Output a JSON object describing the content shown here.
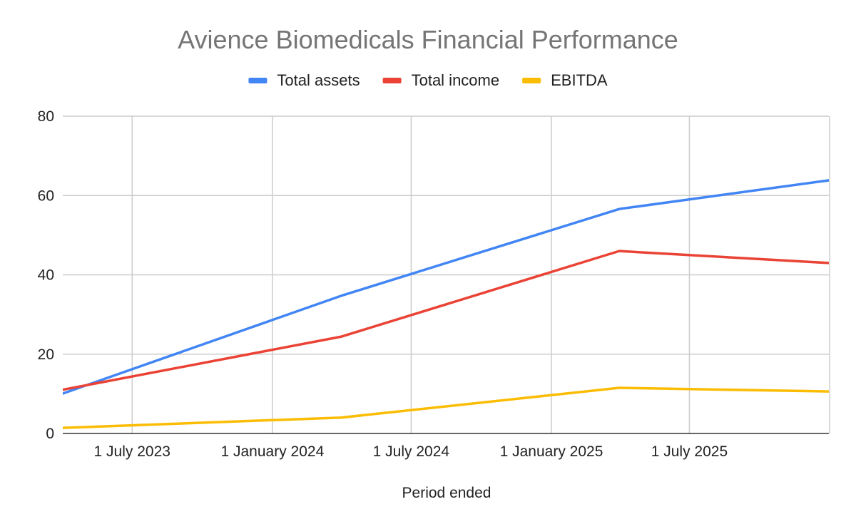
{
  "chart_data": {
    "type": "line",
    "title": "Avience Biomedicals Financial Performance",
    "xlabel": "Period ended",
    "ylabel": "",
    "ylim": [
      0,
      80
    ],
    "yticks": [
      0,
      20,
      40,
      60,
      80
    ],
    "xlim": [
      "2023-04-01",
      "2025-12-31"
    ],
    "xticks": [
      {
        "date": "2023-07-01",
        "label": "1 July 2023"
      },
      {
        "date": "2024-01-01",
        "label": "1 January 2024"
      },
      {
        "date": "2024-07-01",
        "label": "1 July 2024"
      },
      {
        "date": "2025-01-01",
        "label": "1 January 2025"
      },
      {
        "date": "2025-07-01",
        "label": "1 July 2025"
      },
      {
        "date": "2026-01-01",
        "label": ""
      }
    ],
    "grid": true,
    "legend_position": "top",
    "x": [
      "2023-03-31",
      "2024-03-31",
      "2025-03-31",
      "2026-03-31"
    ],
    "series": [
      {
        "name": "Total assets",
        "color": "#4285f4",
        "values": [
          10,
          34.7,
          56.6,
          66.2
        ]
      },
      {
        "name": "Total income",
        "color": "#ea4335",
        "values": [
          11,
          24.4,
          46,
          42
        ]
      },
      {
        "name": "EBITDA",
        "color": "#fbbc04",
        "values": [
          1.4,
          4,
          11.5,
          10.3
        ]
      }
    ]
  }
}
